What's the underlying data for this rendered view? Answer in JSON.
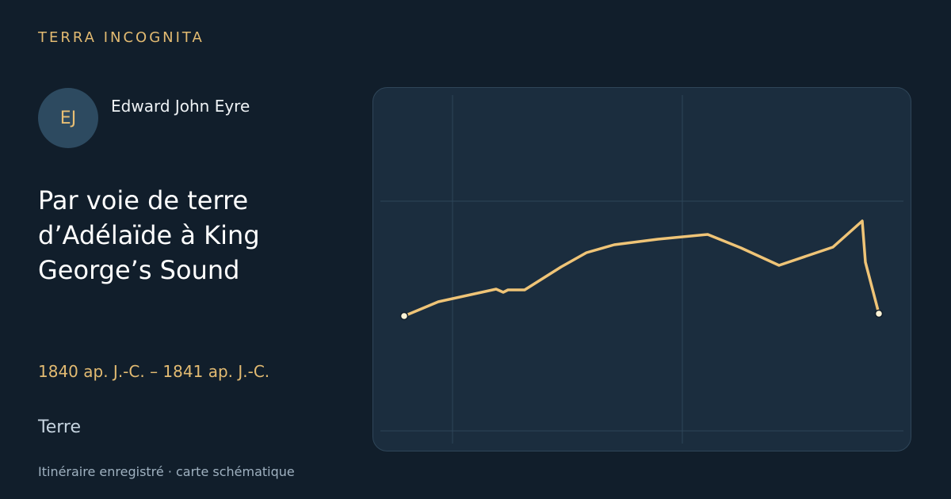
{
  "header": {
    "brand": "TERRA INCOGNITA"
  },
  "traveler": {
    "initials": "EJ",
    "name": "Edward John Eyre"
  },
  "journey": {
    "title": "Par voie de terre d’Adélaïde à King George’s Sound",
    "dates": "1840 ap. J.-C. – 1841 ap. J.-C.",
    "mode": "Terre"
  },
  "footer": {
    "note": "Itinéraire enregistré · carte schématique"
  }
}
